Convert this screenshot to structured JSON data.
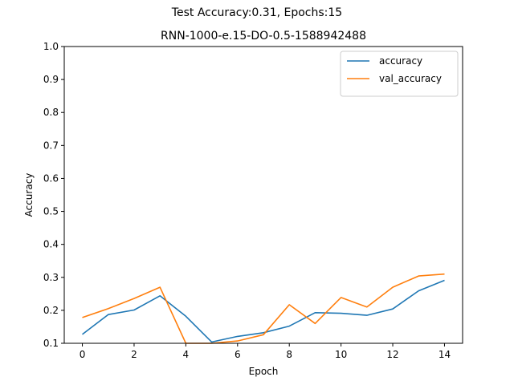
{
  "figure": {
    "suptitle": "Test Accuracy:0.31, Epochs:15"
  },
  "chart_data": {
    "type": "line",
    "title": "RNN-1000-e.15-DO-0.5-1588942488",
    "xlabel": "Epoch",
    "ylabel": "Accuracy",
    "xlim": [
      -0.7,
      14.7
    ],
    "ylim": [
      0.1,
      1.0
    ],
    "xticks": [
      0,
      2,
      4,
      6,
      8,
      10,
      12,
      14
    ],
    "yticks": [
      0.1,
      0.2,
      0.3,
      0.4,
      0.5,
      0.6,
      0.7,
      0.8,
      0.9,
      1.0
    ],
    "x": [
      0,
      1,
      2,
      3,
      4,
      5,
      6,
      7,
      8,
      9,
      10,
      11,
      12,
      13,
      14
    ],
    "series": [
      {
        "name": "accuracy",
        "color": "#1f77b4",
        "values": [
          0.127,
          0.187,
          0.201,
          0.244,
          0.182,
          0.104,
          0.121,
          0.132,
          0.152,
          0.193,
          0.191,
          0.185,
          0.204,
          0.259,
          0.291
        ]
      },
      {
        "name": "val_accuracy",
        "color": "#ff7f0e",
        "values": [
          0.178,
          0.205,
          0.236,
          0.27,
          0.1,
          0.1,
          0.107,
          0.126,
          0.217,
          0.16,
          0.239,
          0.21,
          0.27,
          0.304,
          0.31
        ]
      }
    ],
    "legend": "top-right",
    "grid": false
  }
}
